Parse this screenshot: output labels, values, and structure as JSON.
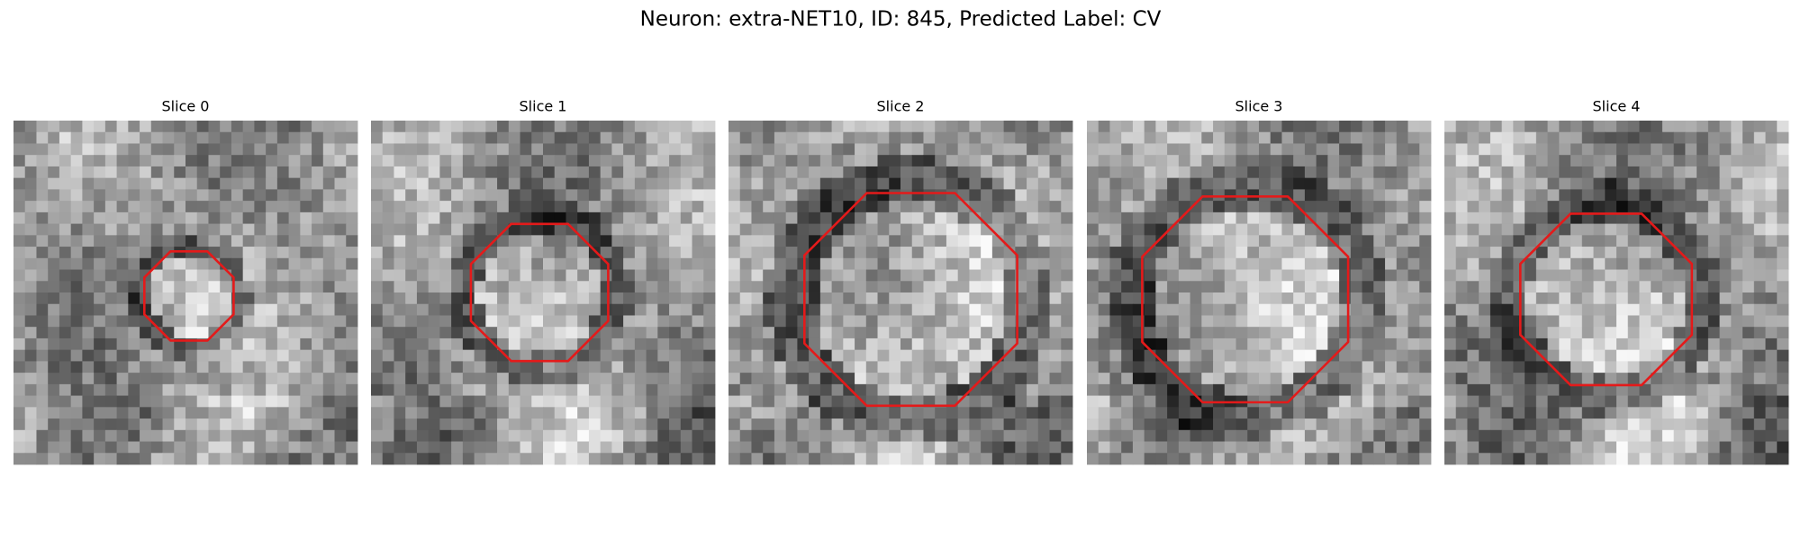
{
  "title": "Neuron: extra-NET10, ID: 845, Predicted Label: CV",
  "panels": [
    {
      "title": "Slice 0"
    },
    {
      "title": "Slice 1"
    },
    {
      "title": "Slice 2"
    },
    {
      "title": "Slice 3"
    },
    {
      "title": "Slice 4"
    }
  ]
}
